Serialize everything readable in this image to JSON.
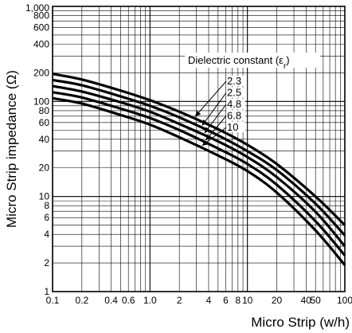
{
  "chart_data": {
    "type": "line",
    "xlabel": "Micro Strip (w/h)",
    "ylabel": "Micro Strip impedance (Ω)",
    "xscale": "log",
    "yscale": "log",
    "xlim": [
      0.1,
      100
    ],
    "ylim": [
      1,
      1000
    ],
    "grid": true,
    "x_tick_labels": [
      {
        "v": 0.1,
        "t": "0.1"
      },
      {
        "v": 0.2,
        "t": "0.2"
      },
      {
        "v": 0.4,
        "t": "0.4"
      },
      {
        "v": 0.6,
        "t": "0.6"
      },
      {
        "v": 1,
        "t": "1.0"
      },
      {
        "v": 2,
        "t": "2"
      },
      {
        "v": 4,
        "t": "4"
      },
      {
        "v": 6,
        "t": "6"
      },
      {
        "v": 8,
        "t": "8"
      },
      {
        "v": 10,
        "t": "10"
      },
      {
        "v": 20,
        "t": "20"
      },
      {
        "v": 40,
        "t": "40"
      },
      {
        "v": 50,
        "t": "50"
      },
      {
        "v": 100,
        "t": "100"
      }
    ],
    "y_tick_labels": [
      {
        "v": 1,
        "t": "1"
      },
      {
        "v": 2,
        "t": "2"
      },
      {
        "v": 4,
        "t": "4"
      },
      {
        "v": 6,
        "t": "6"
      },
      {
        "v": 8,
        "t": "8"
      },
      {
        "v": 10,
        "t": "10"
      },
      {
        "v": 20,
        "t": "20"
      },
      {
        "v": 40,
        "t": "40"
      },
      {
        "v": 60,
        "t": "60"
      },
      {
        "v": 80,
        "t": "80"
      },
      {
        "v": 100,
        "t": "100"
      },
      {
        "v": 200,
        "t": "200"
      },
      {
        "v": 400,
        "t": "400"
      },
      {
        "v": 600,
        "t": "600"
      },
      {
        "v": 800,
        "t": "800"
      },
      {
        "v": 1000,
        "t": "1,000"
      }
    ],
    "legend_title": "Dielectric constant (ε",
    "legend_title_sub": "r",
    "legend_title_end": ")",
    "legend_position": "top-right",
    "series": [
      {
        "name": "2.3",
        "x": [
          0.1,
          0.2,
          0.5,
          1,
          2,
          5,
          10,
          20,
          50,
          100
        ],
        "y": [
          195,
          170,
          130,
          103,
          78,
          51,
          35,
          22,
          10,
          5
        ]
      },
      {
        "name": "2.5",
        "x": [
          0.1,
          0.2,
          0.5,
          1,
          2,
          5,
          10,
          20,
          50,
          100
        ],
        "y": [
          168,
          148,
          113,
          90,
          68,
          44,
          30,
          19,
          8.4,
          3.9
        ]
      },
      {
        "name": "4.8",
        "x": [
          0.1,
          0.2,
          0.5,
          1,
          2,
          5,
          10,
          20,
          50,
          100
        ],
        "y": [
          145,
          127,
          98,
          78,
          58,
          38,
          26,
          16,
          6.9,
          3.0
        ]
      },
      {
        "name": "6.8",
        "x": [
          0.1,
          0.2,
          0.5,
          1,
          2,
          5,
          10,
          20,
          50,
          100
        ],
        "y": [
          125,
          110,
          84,
          67,
          50,
          32,
          22,
          13.3,
          5.5,
          2.4
        ]
      },
      {
        "name": "10",
        "x": [
          0.1,
          0.2,
          0.5,
          1,
          2,
          5,
          10,
          20,
          50,
          100
        ],
        "y": [
          108,
          95,
          72,
          57,
          42,
          27,
          18.5,
          11.0,
          4.4,
          1.9
        ]
      }
    ]
  }
}
